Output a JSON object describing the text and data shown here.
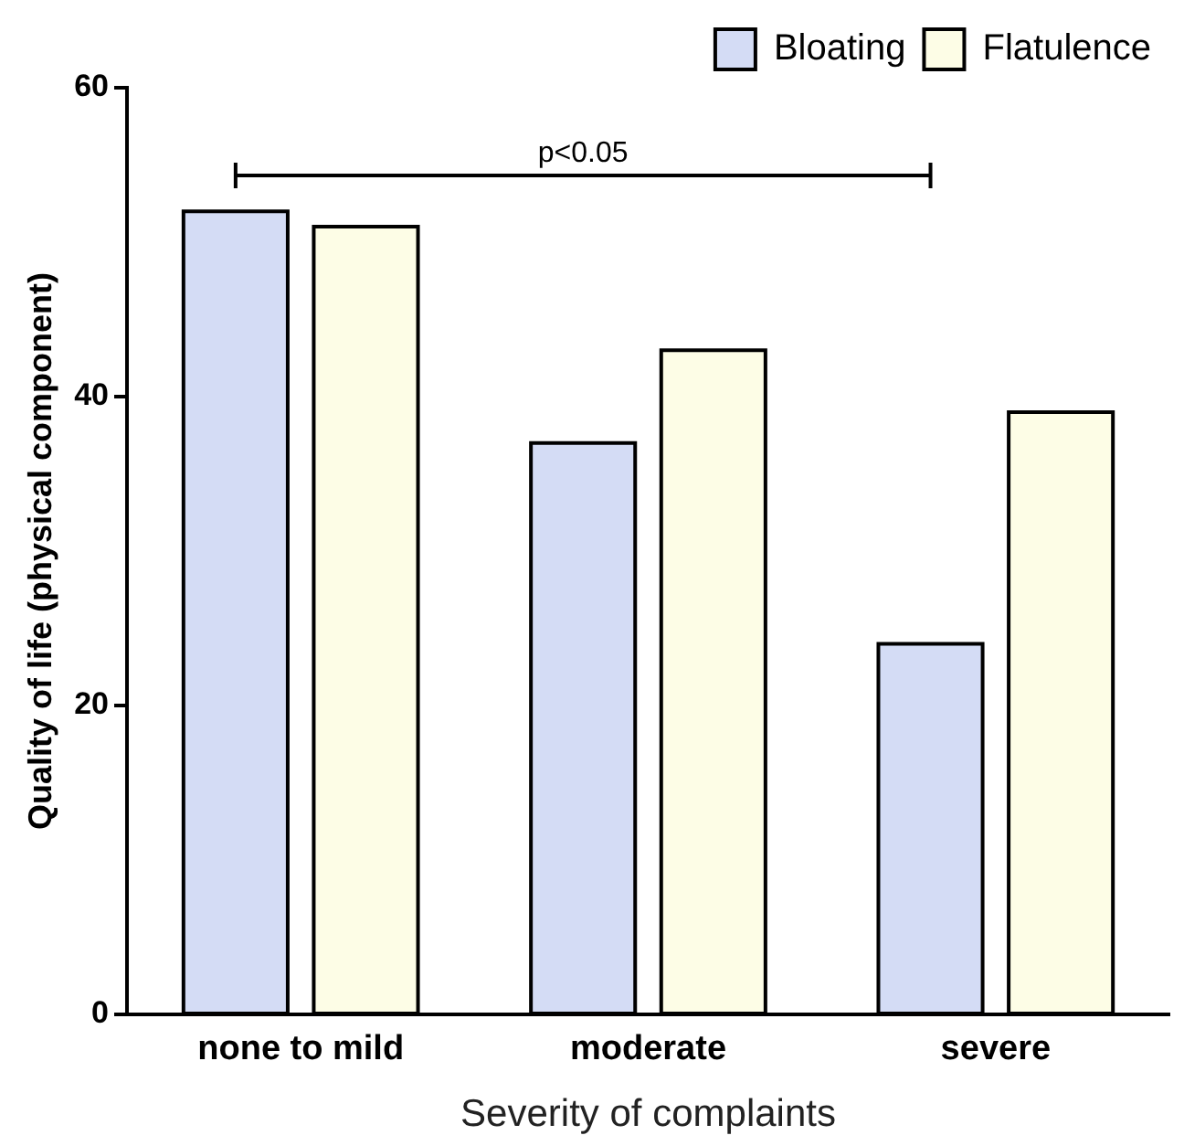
{
  "chart_data": {
    "type": "bar",
    "xlabel": "Severity of complaints",
    "ylabel": "Quality of life (physical component)",
    "categories": [
      "none to mild",
      "moderate",
      "severe"
    ],
    "series": [
      {
        "name": "Bloating",
        "color": "#d4dcf5",
        "values": [
          52,
          37,
          24
        ]
      },
      {
        "name": "Flatulence",
        "color": "#fdfde6",
        "values": [
          51,
          43,
          39
        ]
      }
    ],
    "ylim": [
      0,
      60
    ],
    "yticks": [
      0,
      20,
      40,
      60
    ],
    "grid": false,
    "legend": "top right",
    "annotations": [
      "p<0.05"
    ]
  }
}
